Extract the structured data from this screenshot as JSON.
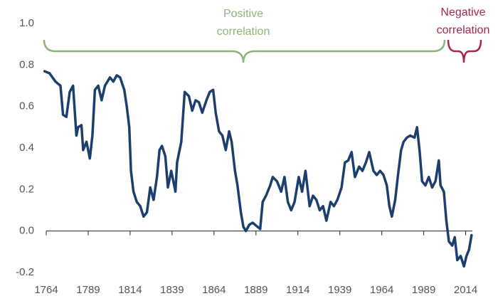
{
  "chart_data": {
    "type": "line",
    "x": [
      1763,
      1766,
      1769.5,
      1772.5,
      1774,
      1776,
      1778,
      1780,
      1782,
      1783,
      1785,
      1786,
      1788,
      1790,
      1791.5,
      1793,
      1795,
      1797,
      1799,
      1802,
      1804,
      1806,
      1808,
      1810.5,
      1812,
      1813.5,
      1814.5,
      1816,
      1818,
      1820,
      1822,
      1824,
      1826,
      1828,
      1830,
      1831.5,
      1833,
      1835,
      1836.5,
      1838.5,
      1841,
      1842,
      1844.5,
      1846.5,
      1849,
      1851,
      1853,
      1855,
      1857,
      1859.5,
      1861.5,
      1863.5,
      1865,
      1867,
      1869,
      1871,
      1873,
      1874.5,
      1876.5,
      1878,
      1880,
      1881.5,
      1883,
      1885,
      1887,
      1890,
      1891.5,
      1893,
      1895,
      1897.5,
      1899,
      1901.5,
      1904,
      1906,
      1908,
      1910,
      1912,
      1914.5,
      1916.5,
      1918.5,
      1921,
      1923,
      1925,
      1927,
      1929,
      1931,
      1933.5,
      1935.5,
      1937.5,
      1940,
      1942,
      1944,
      1946,
      1948,
      1950.5,
      1952.5,
      1954.5,
      1956.5,
      1959,
      1961,
      1963,
      1965,
      1967,
      1968.5,
      1970,
      1972,
      1973.5,
      1975.5,
      1977,
      1979,
      1981,
      1983.5,
      1985,
      1986.5,
      1988,
      1990,
      1992,
      1994,
      1996,
      1998,
      1999,
      2001,
      2002.5,
      2004,
      2006,
      2007.5,
      2009,
      2011,
      2013,
      2014.5,
      2016,
      2017.5
    ],
    "series": [
      {
        "color": "#1c3f6e",
        "values": [
          0.77,
          0.76,
          0.72,
          0.7,
          0.56,
          0.55,
          0.67,
          0.7,
          0.46,
          0.5,
          0.51,
          0.39,
          0.43,
          0.35,
          0.46,
          0.68,
          0.7,
          0.63,
          0.7,
          0.74,
          0.72,
          0.75,
          0.74,
          0.68,
          0.6,
          0.5,
          0.29,
          0.19,
          0.14,
          0.12,
          0.07,
          0.09,
          0.21,
          0.15,
          0.26,
          0.39,
          0.41,
          0.36,
          0.21,
          0.29,
          0.19,
          0.33,
          0.43,
          0.67,
          0.65,
          0.58,
          0.63,
          0.62,
          0.57,
          0.63,
          0.67,
          0.68,
          0.57,
          0.48,
          0.46,
          0.39,
          0.48,
          0.43,
          0.29,
          0.22,
          0.09,
          0.02,
          0.0,
          0.03,
          0.04,
          0.02,
          0.01,
          0.14,
          0.17,
          0.22,
          0.26,
          0.24,
          0.19,
          0.26,
          0.14,
          0.1,
          0.14,
          0.26,
          0.19,
          0.29,
          0.12,
          0.17,
          0.15,
          0.1,
          0.12,
          0.05,
          0.14,
          0.12,
          0.15,
          0.21,
          0.33,
          0.34,
          0.38,
          0.26,
          0.31,
          0.29,
          0.33,
          0.38,
          0.29,
          0.27,
          0.29,
          0.27,
          0.22,
          0.12,
          0.07,
          0.15,
          0.26,
          0.39,
          0.43,
          0.45,
          0.46,
          0.45,
          0.5,
          0.39,
          0.24,
          0.22,
          0.26,
          0.21,
          0.24,
          0.34,
          0.22,
          0.19,
          0.05,
          -0.05,
          -0.07,
          -0.03,
          -0.14,
          -0.12,
          -0.17,
          -0.12,
          -0.09,
          -0.02
        ]
      }
    ],
    "xlim": [
      1764,
      2018
    ],
    "xticks": [
      1764,
      1789,
      1814,
      1839,
      1864,
      1889,
      1914,
      1939,
      1964,
      1989,
      2014
    ],
    "ylim": [
      -0.2,
      1.0
    ],
    "yticks": [
      {
        "value": 1.0,
        "label": "1.0"
      },
      0.8,
      0.6,
      0.4,
      0.2,
      {
        "value": 0,
        "label": "0.0"
      },
      -0.2
    ],
    "grid": false,
    "annotations": [
      {
        "lines": [
          "Positive",
          "correlation"
        ],
        "color": "#8db57a"
      },
      {
        "lines": [
          "Negative",
          "correlation"
        ],
        "color": "#a8254f"
      }
    ]
  }
}
